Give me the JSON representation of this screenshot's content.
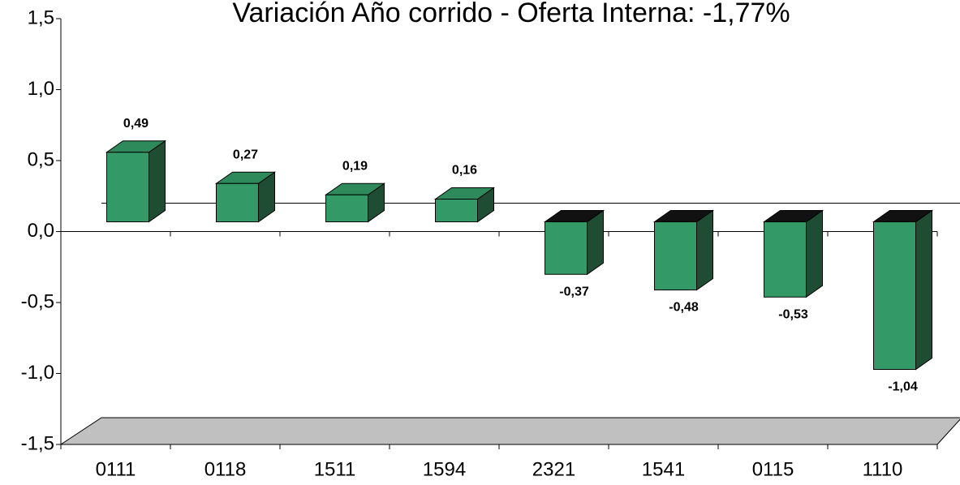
{
  "chart_data": {
    "type": "bar",
    "title": "Variación Año corrido - Oferta Interna: -1,77%",
    "categories": [
      "0111",
      "0118",
      "1511",
      "1594",
      "2321",
      "1541",
      "0115",
      "1110"
    ],
    "values": [
      0.49,
      0.27,
      0.19,
      0.16,
      -0.37,
      -0.48,
      -0.53,
      -1.04
    ],
    "value_labels": [
      "0,49",
      "0,27",
      "0,19",
      "0,16",
      "-0,37",
      "-0,48",
      "-0,53",
      "-1,04"
    ],
    "color": "#339966",
    "ylim": [
      -1.5,
      1.5
    ],
    "yticks": [
      {
        "value": -1.5,
        "label": "-1,5"
      },
      {
        "value": -1.0,
        "label": "-1,0"
      },
      {
        "value": -0.5,
        "label": "-0,5"
      },
      {
        "value": 0.0,
        "label": "0,0"
      },
      {
        "value": 0.5,
        "label": "0,5"
      },
      {
        "value": 1.0,
        "label": "1,0"
      },
      {
        "value": 1.5,
        "label": "1,5"
      }
    ]
  }
}
